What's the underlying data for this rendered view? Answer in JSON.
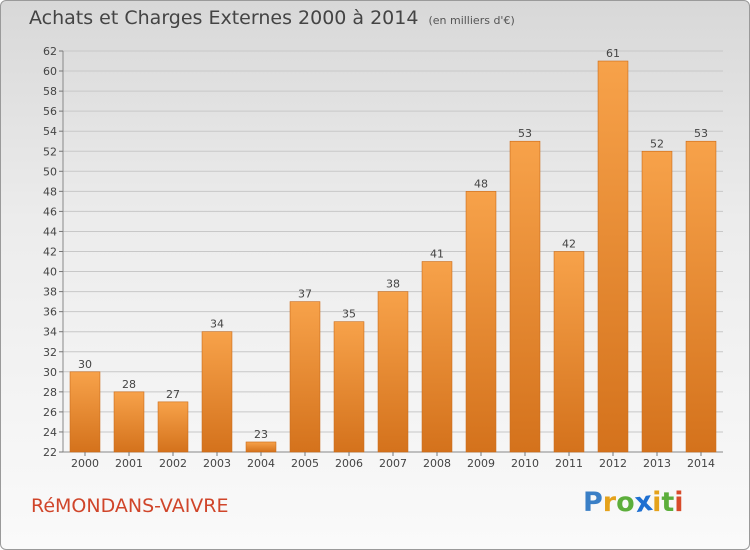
{
  "header": {
    "title": "Achats et Charges Externes 2000 à 2014",
    "subtitle": "(en milliers d'€)"
  },
  "footer": {
    "town": "RéMONDANS-VAIVRE",
    "logo_letters": [
      {
        "ch": "P",
        "color": "#3a7fc6"
      },
      {
        "ch": "r",
        "color": "#e5a21b"
      },
      {
        "ch": "o",
        "color": "#5cae3b"
      },
      {
        "ch": "x",
        "color": "#1e6fd1"
      },
      {
        "ch": "i",
        "color": "#e5a21b"
      },
      {
        "ch": "t",
        "color": "#5cae3b"
      },
      {
        "ch": "i",
        "color": "#d84b2a"
      }
    ]
  },
  "colors": {
    "bar_light": "#f7a24a",
    "bar_dark": "#d4721c",
    "grid": "#c8c8c8",
    "axis_text": "#444444"
  },
  "chart_data": {
    "type": "bar",
    "categories": [
      "2000",
      "2001",
      "2002",
      "2003",
      "2004",
      "2005",
      "2006",
      "2007",
      "2008",
      "2009",
      "2010",
      "2011",
      "2012",
      "2013",
      "2014"
    ],
    "values": [
      30,
      28,
      27,
      34,
      23,
      37,
      35,
      38,
      41,
      48,
      53,
      42,
      61,
      52,
      53
    ],
    "title": "Achats et Charges Externes 2000 à 2014",
    "subtitle": "(en milliers d'€)",
    "xlabel": "",
    "ylabel": "",
    "ylim": [
      22,
      62
    ],
    "yticks": [
      22,
      24,
      26,
      28,
      30,
      32,
      34,
      36,
      38,
      40,
      42,
      44,
      46,
      48,
      50,
      52,
      54,
      56,
      58,
      60,
      62
    ],
    "grid": true,
    "data_labels": true
  }
}
